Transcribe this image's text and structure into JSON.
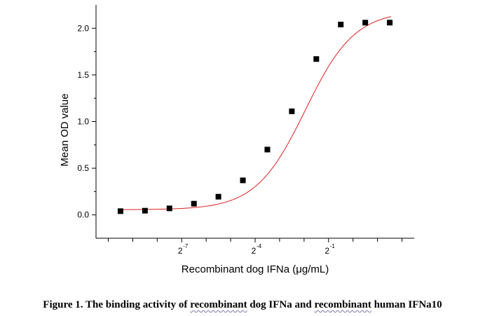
{
  "chart_data": {
    "type": "scatter",
    "xlabel": "Recombinant dog IFNa (μg/mL)",
    "ylabel": "Mean OD value",
    "x_scale": "log2",
    "xlim": [
      -10.5,
      2.5
    ],
    "ylim": [
      -0.25,
      2.25
    ],
    "x_ticks_major": [
      {
        "exp": -7,
        "label": "2",
        "sup": "-7"
      },
      {
        "exp": -4,
        "label": "2",
        "sup": "-4"
      },
      {
        "exp": -1,
        "label": "2",
        "sup": "-1"
      }
    ],
    "x_ticks_minor": [
      -10,
      -9,
      -8,
      -6,
      -5,
      -3,
      -2,
      0,
      1,
      2
    ],
    "y_ticks": [
      {
        "value": 0.0,
        "label": "0.0"
      },
      {
        "value": 0.5,
        "label": "0.5"
      },
      {
        "value": 1.0,
        "label": "1.0"
      },
      {
        "value": 1.5,
        "label": "1.5"
      },
      {
        "value": 2.0,
        "label": "2.0"
      }
    ],
    "y_minor_ticks": [
      0.25,
      0.75,
      1.25,
      1.75
    ],
    "series": [
      {
        "marker": "square",
        "color": "#000000",
        "x_log2": [
          -9.5,
          -8.5,
          -7.5,
          -6.5,
          -5.5,
          -4.5,
          -3.5,
          -2.5,
          -1.5,
          -0.5,
          0.5,
          1.5
        ],
        "y": [
          0.04,
          0.045,
          0.07,
          0.12,
          0.195,
          0.37,
          0.7,
          1.11,
          1.67,
          2.04,
          2.06,
          2.06
        ]
      }
    ],
    "fit_curve": {
      "model": "4PL",
      "color": "#e02020",
      "bottom": 0.055,
      "top": 2.19,
      "midpoint_log2": -1.95,
      "hill": 0.55
    }
  },
  "caption": {
    "prefix": "Figure 1. The binding activity of ",
    "term1": "recombinant",
    "mid1": " dog IFNa and ",
    "term2": "recombinant",
    "suffix": " human IFNa10"
  }
}
